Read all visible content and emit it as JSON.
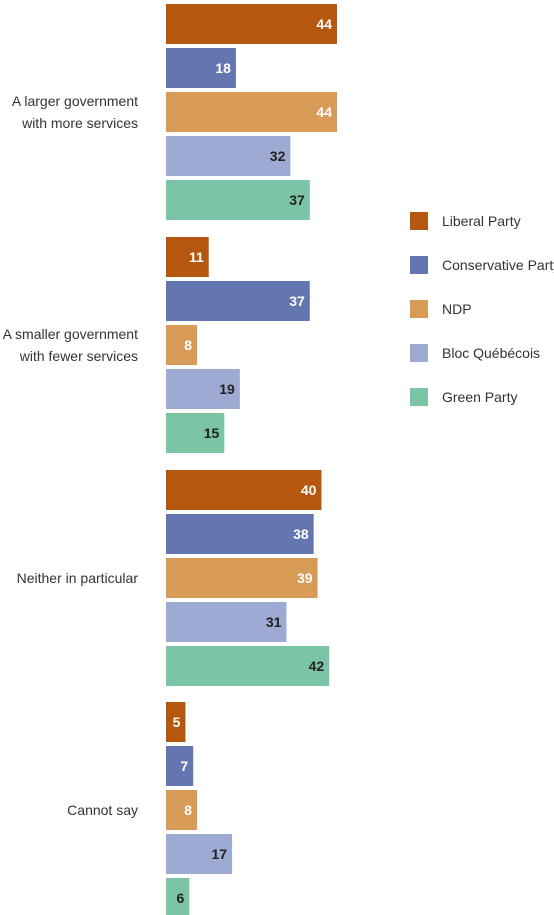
{
  "chart_data": {
    "type": "bar",
    "orientation": "horizontal",
    "categories": [
      [
        "A larger government",
        "with more services"
      ],
      [
        "A smaller government",
        "with fewer services"
      ],
      [
        "Neither in particular"
      ],
      [
        "Cannot say"
      ]
    ],
    "series": [
      {
        "name": "Liberal Party",
        "color": "#b5570e",
        "values": [
          44,
          11,
          40,
          5
        ]
      },
      {
        "name": "Conservative Party",
        "color": "#6476b0",
        "values": [
          18,
          37,
          38,
          7
        ]
      },
      {
        "name": "NDP",
        "color": "#d79b57",
        "values": [
          44,
          8,
          39,
          8
        ]
      },
      {
        "name": "Bloc Québécois",
        "color": "#9daad2",
        "values": [
          32,
          19,
          31,
          17
        ]
      },
      {
        "name": "Green Party",
        "color": "#7cc4a6",
        "values": [
          37,
          15,
          42,
          6
        ]
      }
    ],
    "data_label_colors": [
      "#ffffff",
      "#ffffff",
      "#ffffff",
      "#222222",
      "#222222"
    ],
    "title": "",
    "xlabel": "",
    "ylabel": "",
    "xlim": [
      0,
      45
    ],
    "grid": false,
    "legend_position": "right"
  }
}
